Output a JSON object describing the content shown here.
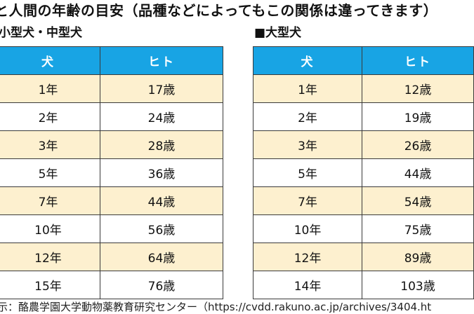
{
  "title": "と人間の年齢の目安（品種などによってもこの関係は違ってきます）",
  "left_table": {
    "heading": "小型犬・中型犬",
    "col_dog": "犬",
    "col_human": "ヒト",
    "rows": [
      {
        "dog": "1年",
        "human": "17歳"
      },
      {
        "dog": "2年",
        "human": "24歳"
      },
      {
        "dog": "3年",
        "human": "28歳"
      },
      {
        "dog": "5年",
        "human": "36歳"
      },
      {
        "dog": "7年",
        "human": "44歳"
      },
      {
        "dog": "10年",
        "human": "56歳"
      },
      {
        "dog": "12年",
        "human": "64歳"
      },
      {
        "dog": "15年",
        "human": "76歳"
      }
    ]
  },
  "right_table": {
    "heading": "■大型犬",
    "col_dog": "犬",
    "col_human": "ヒト",
    "rows": [
      {
        "dog": "1年",
        "human": "12歳"
      },
      {
        "dog": "2年",
        "human": "19歳"
      },
      {
        "dog": "3年",
        "human": "26歳"
      },
      {
        "dog": "5年",
        "human": "44歳"
      },
      {
        "dog": "7年",
        "human": "54歳"
      },
      {
        "dog": "10年",
        "human": "75歳"
      },
      {
        "dog": "12年",
        "human": "89歳"
      },
      {
        "dog": "14年",
        "human": "103歳"
      }
    ]
  },
  "footer": "示：酪農学園大学動物薬教育研究センター（https://cvdd.rakuno.ac.jp/archives/3404.ht"
}
